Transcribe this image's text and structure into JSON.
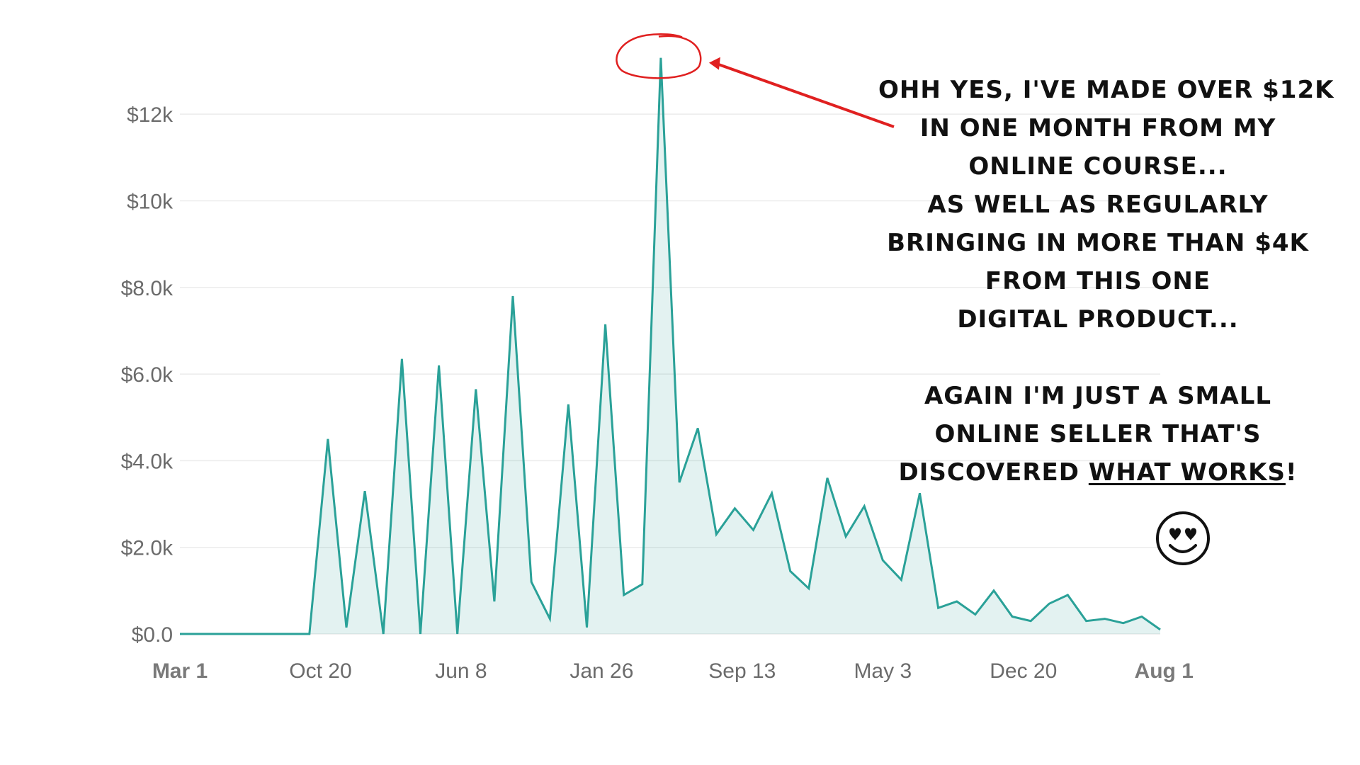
{
  "chart_data": {
    "type": "area",
    "color": "#2aa198",
    "fill_color": "#2aa19822",
    "ylim": [
      0,
      13000
    ],
    "y_ticks": [
      {
        "value": 0,
        "label": "$0.0"
      },
      {
        "value": 2000,
        "label": "$2.0k"
      },
      {
        "value": 4000,
        "label": "$4.0k"
      },
      {
        "value": 6000,
        "label": "$6.0k"
      },
      {
        "value": 8000,
        "label": "$8.0k"
      },
      {
        "value": 10000,
        "label": "$10k"
      },
      {
        "value": 12000,
        "label": "$12k"
      }
    ],
    "x_ticks": [
      {
        "index": 0,
        "label": "Mar 1",
        "bold": true
      },
      {
        "index": 7.6,
        "label": "Oct 20",
        "bold": false
      },
      {
        "index": 15.2,
        "label": "Jun 8",
        "bold": false
      },
      {
        "index": 22.8,
        "label": "Jan 26",
        "bold": false
      },
      {
        "index": 30.4,
        "label": "Sep 13",
        "bold": false
      },
      {
        "index": 38.0,
        "label": "May 3",
        "bold": false
      },
      {
        "index": 45.6,
        "label": "Dec 20",
        "bold": false
      },
      {
        "index": 53.2,
        "label": "Aug 1",
        "bold": true
      }
    ],
    "values": [
      0,
      0,
      0,
      0,
      0,
      0,
      0,
      0,
      4500,
      150,
      3300,
      0,
      6350,
      0,
      6200,
      0,
      5650,
      750,
      7800,
      1200,
      350,
      5300,
      150,
      7150,
      900,
      1150,
      13300,
      3500,
      4750,
      2300,
      2900,
      2400,
      3250,
      1450,
      1050,
      3600,
      2250,
      2950,
      1700,
      1250,
      3250,
      600,
      750,
      450,
      1000,
      400,
      300,
      700,
      900,
      300,
      350,
      250,
      400,
      100
    ]
  },
  "annotation": {
    "lines": [
      "Ohh yes, I've made over $12K",
      "in one month from my",
      "online course...",
      "as well as regularly",
      "bringing in more than $4K",
      "from this one",
      "digital product...",
      "",
      "Again I'm just a small",
      "online seller that's"
    ],
    "last_line_prefix": "discovered ",
    "last_line_underlined": "what works",
    "last_line_suffix": "!",
    "marker_color": "#e02020"
  },
  "icons": {
    "emoji": "heart-eyes-smiley-icon"
  }
}
